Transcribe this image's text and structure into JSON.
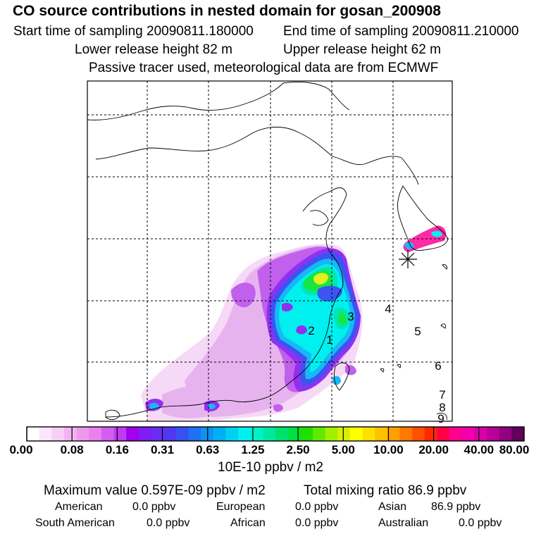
{
  "header": {
    "title": "CO  source contributions in nested domain for gosan_200908",
    "start_label": "Start time of sampling 20090811.180000",
    "end_label": "End time of sampling 20090811.210000",
    "lower_label": "Lower release height   82 m",
    "upper_label": "Upper release height   62 m",
    "note": "Passive tracer used, meteorological data are from ECMWF"
  },
  "colorbar": {
    "colors": [
      "#ffffff",
      "#fde6fd",
      "#f8cdf8",
      "#f3b3f3",
      "#ee99ee",
      "#e880ee",
      "#d55ef0",
      "#bf3cf0",
      "#a000ee",
      "#7e1ef0",
      "#6a2cf0",
      "#5038f0",
      "#3850f2",
      "#2070f2",
      "#1090f2",
      "#00b0f2",
      "#00d0f0",
      "#00f0f0",
      "#00f0c8",
      "#00e8a0",
      "#00e070",
      "#00e040",
      "#20e000",
      "#60e800",
      "#a0f000",
      "#d8f000",
      "#ffff00",
      "#ffe000",
      "#ffc000",
      "#ffa000",
      "#ff7800",
      "#ff5000",
      "#ff2800",
      "#ff0048",
      "#ff0090",
      "#f000a8",
      "#d800a8",
      "#b80098",
      "#900080",
      "#600058"
    ],
    "tick_labels": [
      "0.00",
      "0.08",
      "0.16",
      "0.31",
      "0.63",
      "1.25",
      "2.50",
      "5.00",
      "10.00",
      "20.00",
      "40.00",
      "80.00"
    ],
    "unit_label": "10E-10 ppbv / m2"
  },
  "map": {
    "station_numbers": [
      "1",
      "2",
      "3",
      "4",
      "5",
      "6",
      "7",
      "8",
      "9"
    ],
    "receptor_icon": "asterisk-receptor-icon",
    "colors": {
      "lightest": "#f5d9f7",
      "light": "#e7b3ee",
      "magenta": "#c060ec",
      "purple": "#9030f0",
      "blue": "#3b54f2",
      "sky": "#18b8f4",
      "cyan": "#00f0f0",
      "teal": "#00e6b0",
      "green": "#18e640",
      "yellow": "#e0f020",
      "pink": "#ff2aa8",
      "coast": "#000000"
    }
  },
  "summary": {
    "max_text": "Maximum value  0.597E-09 ppbv / m2",
    "total_text": "Total mixing ratio       86.9 ppbv"
  },
  "sources": [
    {
      "name": "American",
      "value": "0.0 ppbv"
    },
    {
      "name": "European",
      "value": "0.0 ppbv"
    },
    {
      "name": "Asian",
      "value": "86.9 ppbv"
    },
    {
      "name": "South American",
      "value": "0.0 ppbv"
    },
    {
      "name": "African",
      "value": "0.0 ppbv"
    },
    {
      "name": "Australian",
      "value": "0.0 ppbv"
    }
  ]
}
